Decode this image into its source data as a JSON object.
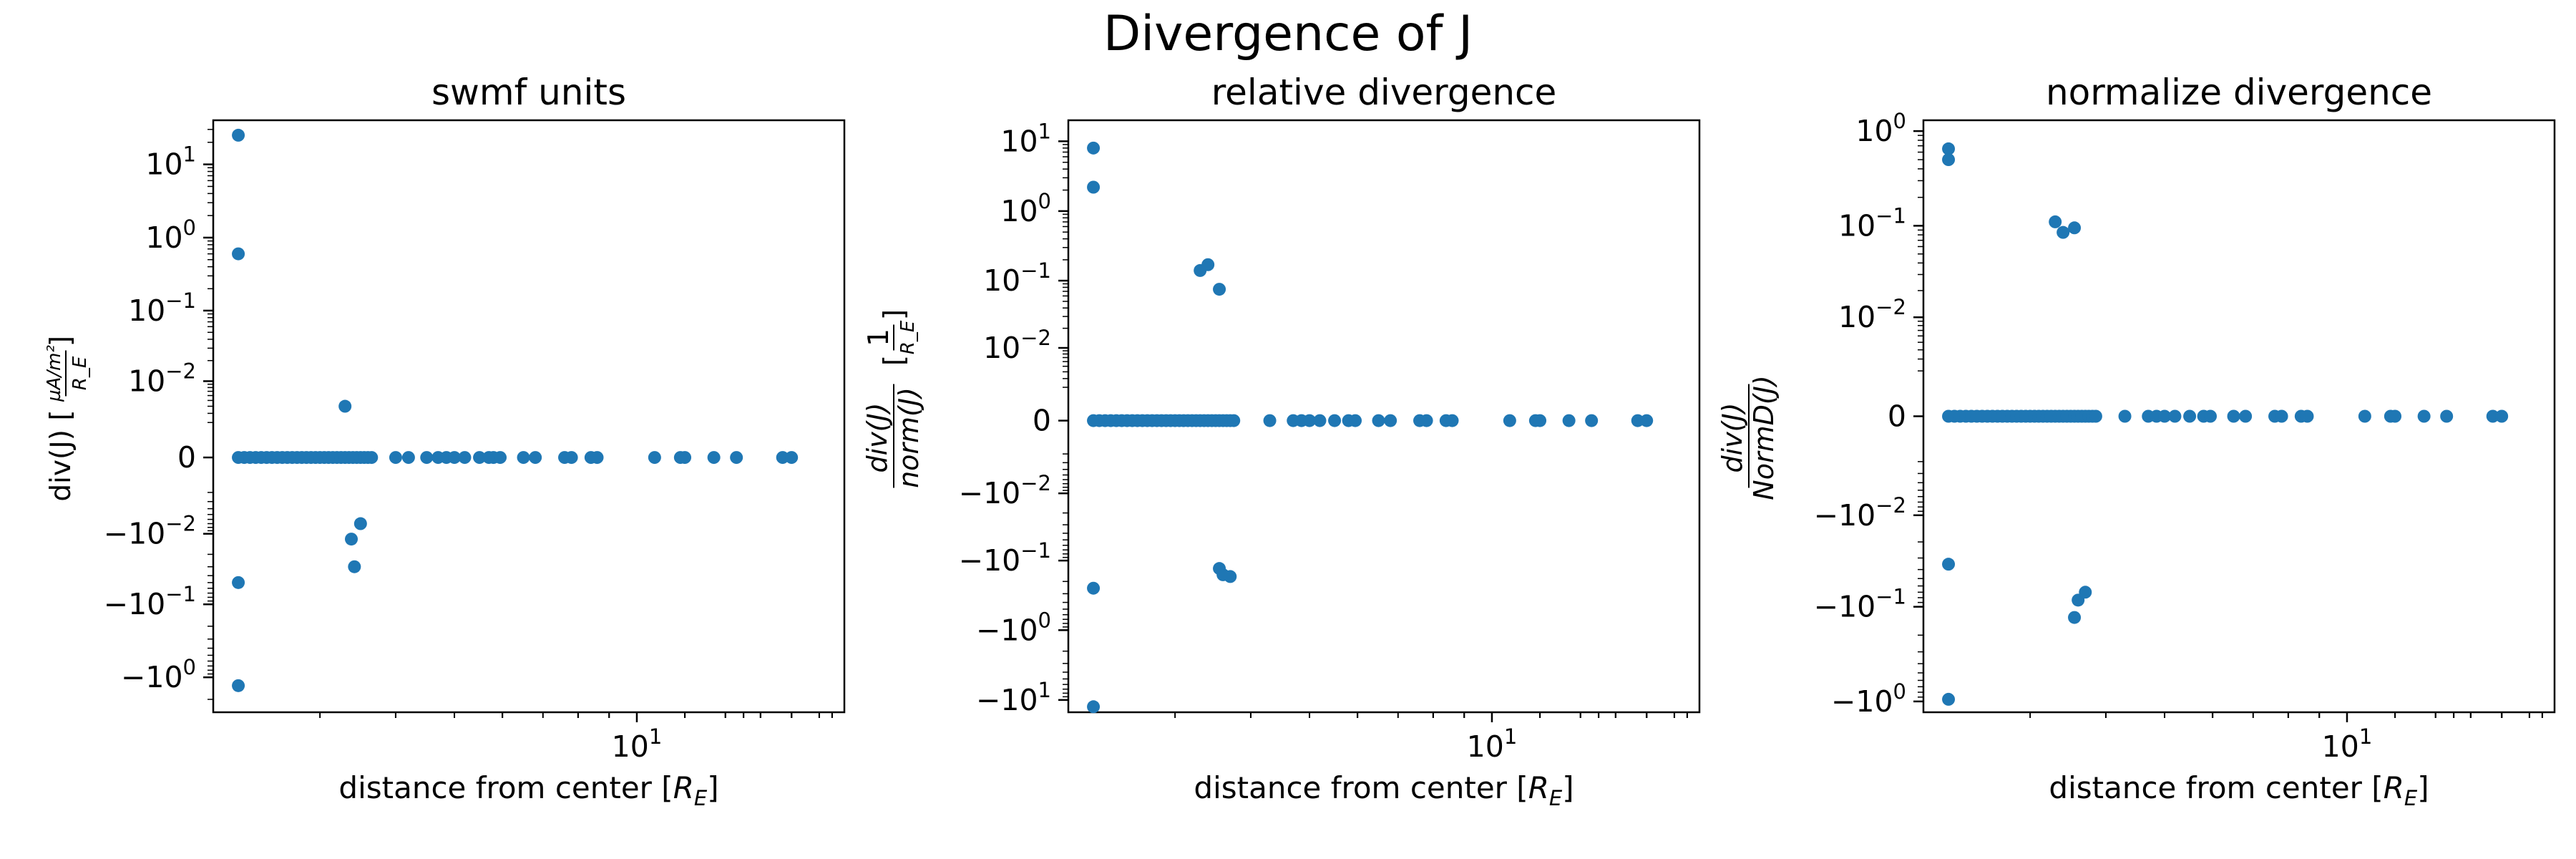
{
  "figure": {
    "title": "Divergence of J"
  },
  "point_color": "#1f77b4",
  "chart_data": [
    {
      "type": "scatter",
      "title": "swmf units",
      "xlabel": "distance from center [R_E]",
      "ylabel": "div(J) [µA/m² / R_E]",
      "ylabel_parts": {
        "main": "div(J) [",
        "num": "µA/m²",
        "den": "R_E",
        "close": "]"
      },
      "xscale": "log",
      "yscale": "symlog",
      "ylinthresh": 0.001,
      "xlim": [
        2.0,
        22.0
      ],
      "ylim": [
        -3.0,
        40.0
      ],
      "xticks": [
        {
          "value": 10,
          "label": "10",
          "exp": "1"
        }
      ],
      "yticks": [
        {
          "value": 10,
          "sign": "",
          "base": "10",
          "exp": "1"
        },
        {
          "value": 1,
          "sign": "",
          "base": "10",
          "exp": "0"
        },
        {
          "value": 0.1,
          "sign": "",
          "base": "10",
          "exp": "−1"
        },
        {
          "value": 0.01,
          "sign": "",
          "base": "10",
          "exp": "−2"
        },
        {
          "value": 0,
          "sign": "",
          "base": "0",
          "exp": ""
        },
        {
          "value": -0.01,
          "sign": "−",
          "base": "10",
          "exp": "−2"
        },
        {
          "value": -0.1,
          "sign": "−",
          "base": "10",
          "exp": "−1"
        },
        {
          "value": -1,
          "sign": "−",
          "base": "10",
          "exp": "0"
        }
      ],
      "points": [
        [
          2.2,
          25.0
        ],
        [
          2.2,
          0.6
        ],
        [
          2.2,
          -0.05
        ],
        [
          2.2,
          -1.3
        ],
        [
          3.3,
          0.004
        ],
        [
          3.38,
          -0.012
        ],
        [
          3.42,
          -0.03
        ],
        [
          3.5,
          -0.007
        ]
      ],
      "zero_x": [
        2.2,
        2.25,
        2.3,
        2.35,
        2.4,
        2.45,
        2.5,
        2.55,
        2.6,
        2.65,
        2.7,
        2.75,
        2.8,
        2.85,
        2.9,
        2.95,
        3.0,
        3.05,
        3.1,
        3.15,
        3.2,
        3.25,
        3.3,
        3.35,
        3.4,
        3.45,
        3.5,
        3.55,
        3.6,
        3.65,
        4.0,
        4.2,
        4.5,
        4.7,
        4.85,
        5.0,
        5.2,
        5.5,
        5.7,
        5.8,
        5.95,
        6.5,
        6.8,
        7.6,
        7.8,
        8.4,
        8.6,
        10.7,
        11.8,
        12.0,
        13.4,
        14.6,
        17.4,
        18.0
      ]
    },
    {
      "type": "scatter",
      "title": "relative divergence",
      "xlabel": "distance from center [R_E]",
      "ylabel": "div(J) / norm(J) [1 / R_E]",
      "ylabel_parts": {
        "num": "div(J)",
        "den": "norm(J)",
        "bnum": "1",
        "bden": "R_E"
      },
      "xscale": "log",
      "yscale": "symlog",
      "ylinthresh": 0.001,
      "xlim": [
        2.0,
        22.0
      ],
      "ylim": [
        -15.0,
        20.0
      ],
      "xticks": [
        {
          "value": 10,
          "label": "10",
          "exp": "1"
        }
      ],
      "yticks": [
        {
          "value": 10,
          "sign": "",
          "base": "10",
          "exp": "1"
        },
        {
          "value": 1,
          "sign": "",
          "base": "10",
          "exp": "0"
        },
        {
          "value": 0.1,
          "sign": "",
          "base": "10",
          "exp": "−1"
        },
        {
          "value": 0.01,
          "sign": "",
          "base": "10",
          "exp": "−2"
        },
        {
          "value": 0,
          "sign": "",
          "base": "0",
          "exp": ""
        },
        {
          "value": -0.01,
          "sign": "−",
          "base": "10",
          "exp": "−2"
        },
        {
          "value": -0.1,
          "sign": "−",
          "base": "10",
          "exp": "−1"
        },
        {
          "value": -1,
          "sign": "−",
          "base": "10",
          "exp": "0"
        },
        {
          "value": -10,
          "sign": "−",
          "base": "10",
          "exp": "1"
        }
      ],
      "points": [
        [
          2.2,
          8.0
        ],
        [
          2.2,
          2.2
        ],
        [
          2.2,
          -0.25
        ],
        [
          2.2,
          -12.5
        ],
        [
          3.3,
          0.14
        ],
        [
          3.4,
          0.17
        ],
        [
          3.55,
          0.075
        ],
        [
          3.55,
          -0.13
        ],
        [
          3.6,
          -0.16
        ],
        [
          3.7,
          -0.17
        ]
      ],
      "zero_x": [
        2.2,
        2.25,
        2.3,
        2.35,
        2.4,
        2.45,
        2.5,
        2.55,
        2.6,
        2.65,
        2.7,
        2.75,
        2.8,
        2.85,
        2.9,
        2.95,
        3.0,
        3.05,
        3.1,
        3.15,
        3.2,
        3.25,
        3.3,
        3.35,
        3.4,
        3.45,
        3.5,
        3.55,
        3.6,
        3.65,
        3.7,
        3.75,
        4.3,
        4.7,
        4.85,
        5.0,
        5.2,
        5.5,
        5.8,
        5.95,
        6.5,
        6.8,
        7.6,
        7.8,
        8.4,
        8.6,
        10.7,
        11.8,
        12.0,
        13.4,
        14.6,
        17.4,
        18.0
      ]
    },
    {
      "type": "scatter",
      "title": "normalize divergence",
      "xlabel": "distance from center [R_E]",
      "ylabel": "div(J) / NormD(J)",
      "ylabel_parts": {
        "num": "div(J)",
        "den": "NormD(J)"
      },
      "xscale": "log",
      "yscale": "symlog",
      "ylinthresh": 0.001,
      "xlim": [
        2.0,
        22.0
      ],
      "ylim": [
        -1.3,
        1.3
      ],
      "xticks": [
        {
          "value": 10,
          "label": "10",
          "exp": "1"
        }
      ],
      "yticks": [
        {
          "value": 1,
          "sign": "",
          "base": "10",
          "exp": "0"
        },
        {
          "value": 0.1,
          "sign": "",
          "base": "10",
          "exp": "−1"
        },
        {
          "value": 0.01,
          "sign": "",
          "base": "10",
          "exp": "−2"
        },
        {
          "value": 0,
          "sign": "",
          "base": "0",
          "exp": ""
        },
        {
          "value": -0.01,
          "sign": "−",
          "base": "10",
          "exp": "−2"
        },
        {
          "value": -0.1,
          "sign": "−",
          "base": "10",
          "exp": "−1"
        },
        {
          "value": -1,
          "sign": "−",
          "base": "10",
          "exp": "0"
        }
      ],
      "points": [
        [
          2.2,
          0.65
        ],
        [
          2.2,
          0.5
        ],
        [
          2.2,
          -0.035
        ],
        [
          2.2,
          -0.95
        ],
        [
          3.3,
          0.11
        ],
        [
          3.4,
          0.085
        ],
        [
          3.55,
          0.095
        ],
        [
          3.55,
          -0.13
        ],
        [
          3.6,
          -0.085
        ],
        [
          3.7,
          -0.07
        ]
      ],
      "zero_x": [
        2.2,
        2.25,
        2.3,
        2.35,
        2.4,
        2.45,
        2.5,
        2.55,
        2.6,
        2.65,
        2.7,
        2.75,
        2.8,
        2.85,
        2.9,
        2.95,
        3.0,
        3.05,
        3.1,
        3.15,
        3.2,
        3.25,
        3.3,
        3.35,
        3.4,
        3.45,
        3.5,
        3.55,
        3.6,
        3.65,
        3.7,
        3.75,
        3.8,
        3.85,
        4.3,
        4.7,
        4.85,
        5.0,
        5.2,
        5.5,
        5.8,
        5.95,
        6.5,
        6.8,
        7.6,
        7.8,
        8.4,
        8.6,
        10.7,
        11.8,
        12.0,
        13.4,
        14.6,
        17.4,
        18.0
      ]
    }
  ]
}
